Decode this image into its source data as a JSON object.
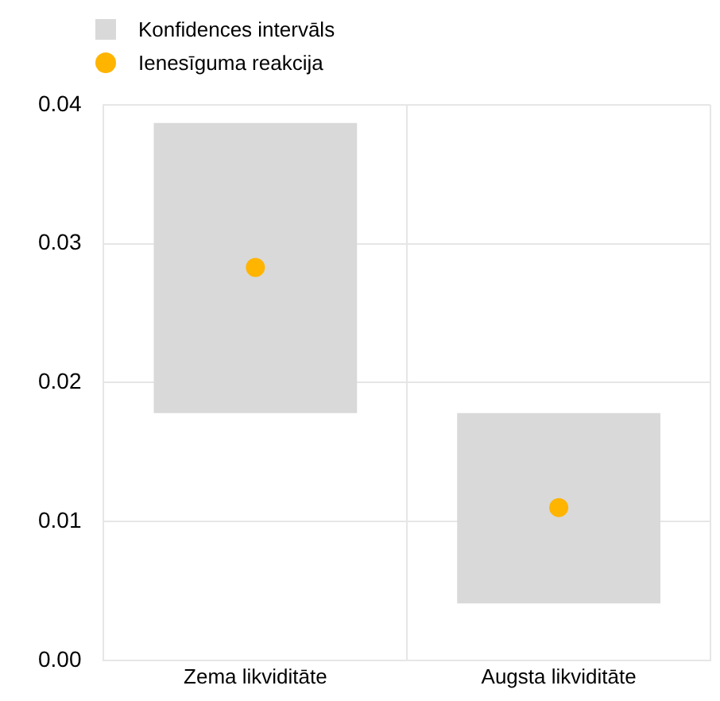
{
  "chart_data": {
    "type": "bar",
    "categories": [
      "Zema likviditāte",
      "Augsta likviditāte"
    ],
    "series": [
      {
        "name": "Konfidences intervāls",
        "color": "#d9d9d9",
        "base": [
          0.0178,
          0.0041
        ],
        "values": [
          0.0209,
          0.0137
        ]
      },
      {
        "name": "Ienesīguma reakcija",
        "type": "scatter",
        "color": "#ffb400",
        "x": [
          "Zema likviditāte",
          "Augsta likviditāte"
        ],
        "values": [
          0.0283,
          0.011
        ]
      }
    ],
    "ylim": [
      0,
      0.04
    ],
    "yticks": [
      {
        "value": 0,
        "label": "0.00"
      },
      {
        "value": 0.01,
        "label": "0.01"
      },
      {
        "value": 0.02,
        "label": "0.02"
      },
      {
        "value": 0.03,
        "label": "0.03"
      },
      {
        "value": 0.04,
        "label": "0.04"
      }
    ],
    "grid": true,
    "legend": "top left",
    "marker": "circle"
  }
}
